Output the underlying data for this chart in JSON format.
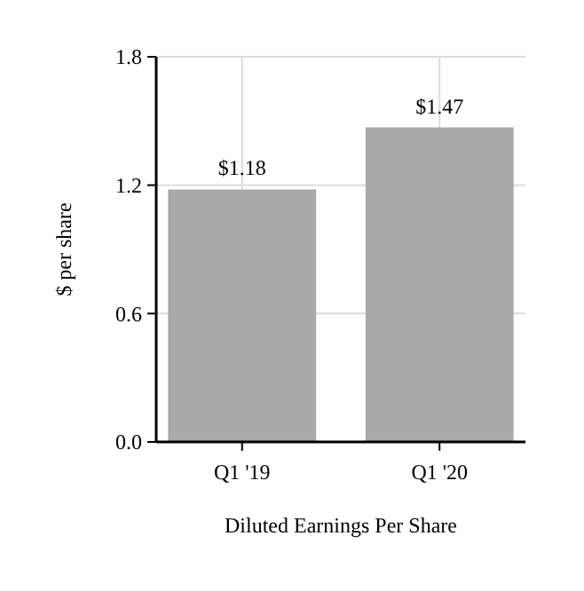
{
  "chart_data": {
    "type": "bar",
    "xlabel": "Diluted Earnings Per Share",
    "ylabel": "$ per share",
    "categories": [
      "Q1 '19",
      "Q1 '20"
    ],
    "values": [
      1.18,
      1.47
    ],
    "value_labels": [
      "$1.18",
      "$1.47"
    ],
    "color": "#a9a9a9",
    "ylim": [
      0,
      1.8
    ],
    "yticks": [
      {
        "value": 0,
        "label": "0.0"
      },
      {
        "value": 0.6,
        "label": "0.6"
      },
      {
        "value": 1.2,
        "label": "1.2"
      },
      {
        "value": 1.8,
        "label": "1.8"
      }
    ],
    "grid": true
  }
}
